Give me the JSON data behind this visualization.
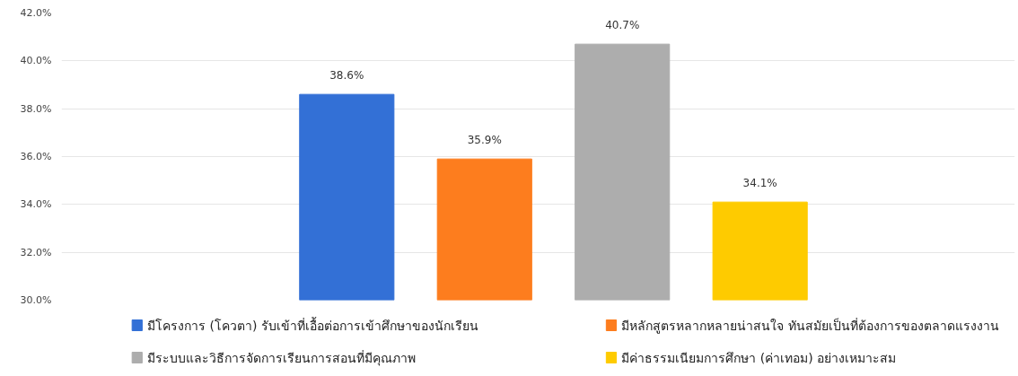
{
  "chart_data": {
    "type": "bar",
    "categories": [
      null
    ],
    "series": [
      {
        "name": "มีโครงการ (โควตา) รับเข้าที่เอื้อต่อการเข้าศึกษาของนักเรียน",
        "color": "#3370d6",
        "values": [
          38.6
        ],
        "value_labels": [
          "38.6%"
        ]
      },
      {
        "name": "มีหลักสูตรหลากหลายน่าสนใจ ทันสมัยเป็นที่ต้องการของตลาดแรงงาน",
        "color": "#fd7d1e",
        "values": [
          35.9
        ],
        "value_labels": [
          "35.9%"
        ]
      },
      {
        "name": "มีระบบและวิธีการจัดการเรียนการสอนที่มีคุณภาพ",
        "color": "#adadad",
        "values": [
          40.7
        ],
        "value_labels": [
          "40.7%"
        ]
      },
      {
        "name": "มีค่าธรรมเนียมการศึกษา (ค่าเทอม) อย่างเหมาะสม",
        "color": "#fecb00",
        "values": [
          34.1
        ],
        "value_labels": [
          "34.1%"
        ]
      }
    ],
    "ylim": [
      30,
      42
    ],
    "yticks": [
      {
        "value": 30,
        "label": "30.0%"
      },
      {
        "value": 32,
        "label": "32.0%"
      },
      {
        "value": 34,
        "label": "34.0%"
      },
      {
        "value": 36,
        "label": "36.0%"
      },
      {
        "value": 38,
        "label": "38.0%"
      },
      {
        "value": 40,
        "label": "40.0%"
      },
      {
        "value": 42,
        "label": "42.0%"
      }
    ],
    "grid": "y",
    "legend": "bottom"
  }
}
